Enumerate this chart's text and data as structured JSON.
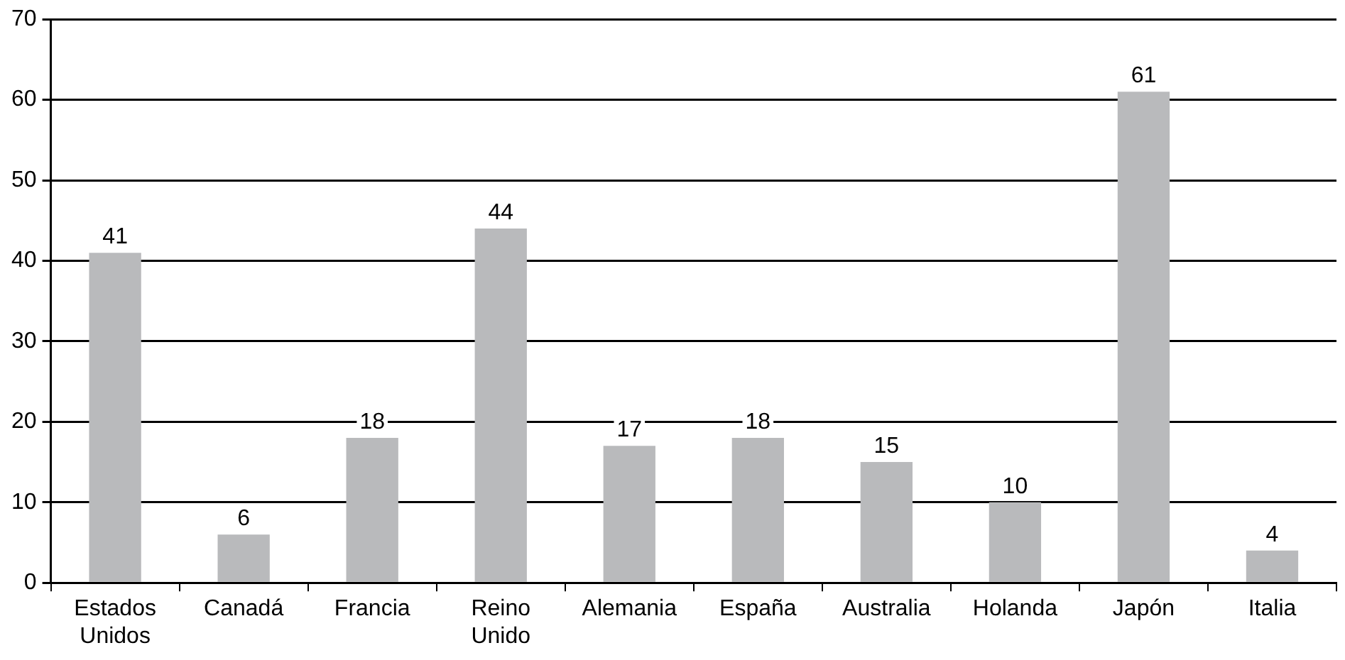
{
  "chart_data": {
    "type": "bar",
    "categories": [
      "Estados Unidos",
      "Canadá",
      "Francia",
      "Reino Unido",
      "Alemania",
      "España",
      "Australia",
      "Holanda",
      "Japón",
      "Italia"
    ],
    "values": [
      41,
      6,
      18,
      44,
      17,
      18,
      15,
      10,
      61,
      4
    ],
    "color": "#b9babc",
    "ylim": [
      0,
      70
    ],
    "yticks": [
      0,
      10,
      20,
      30,
      40,
      50,
      60,
      70
    ],
    "grid": "y",
    "data_labels": true,
    "legend": false
  }
}
